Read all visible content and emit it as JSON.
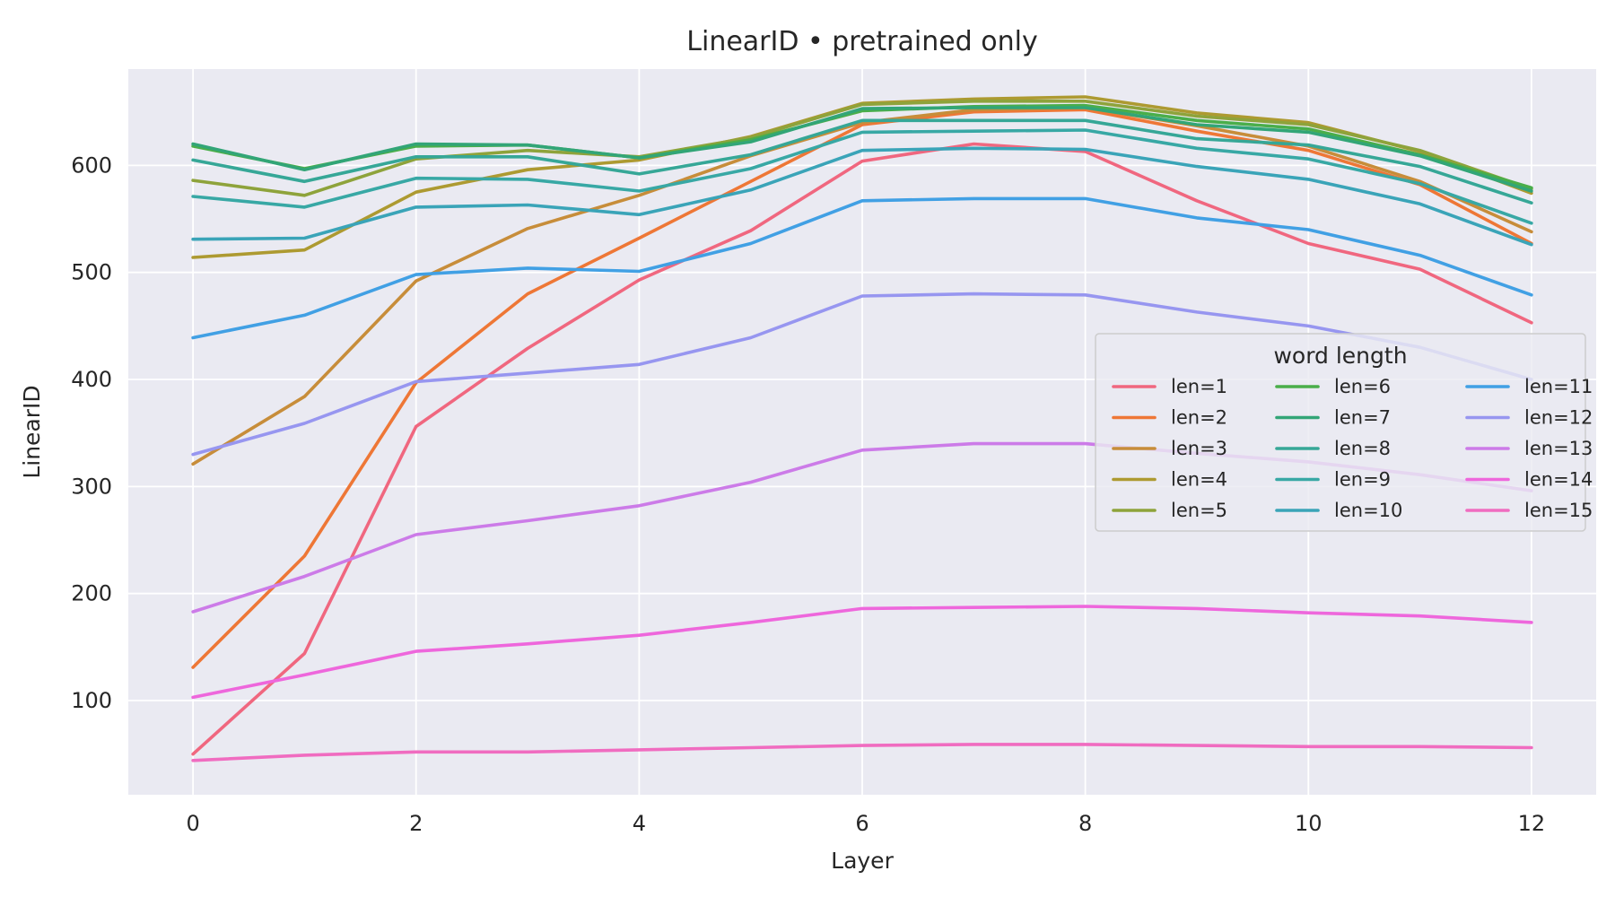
{
  "chart_data": {
    "type": "line",
    "title": "LinearID • pretrained only",
    "xlabel": "Layer",
    "ylabel": "LinearID",
    "xlim": [
      -0.58,
      12.58
    ],
    "ylim": [
      12,
      690
    ],
    "xticks": [
      0,
      2,
      4,
      6,
      8,
      10,
      12
    ],
    "yticks": [
      100,
      200,
      300,
      400,
      500,
      600
    ],
    "grid": true,
    "legend": {
      "title": "word length",
      "placement": "center-right",
      "columns": 3
    },
    "x": [
      0,
      1,
      2,
      3,
      4,
      5,
      6,
      7,
      8,
      9,
      10,
      11,
      12
    ],
    "series": [
      {
        "name": "len=1",
        "color": "#f0677f",
        "values": [
          50,
          144,
          356,
          429,
          493,
          539,
          604,
          620,
          613,
          567,
          527,
          503,
          453
        ]
      },
      {
        "name": "len=2",
        "color": "#ee7736",
        "values": [
          131,
          235,
          397,
          480,
          532,
          585,
          638,
          650,
          652,
          632,
          614,
          582,
          527
        ]
      },
      {
        "name": "len=3",
        "color": "#c78d3a",
        "values": [
          321,
          384,
          492,
          541,
          572,
          609,
          640,
          652,
          654,
          637,
          618,
          585,
          538
        ]
      },
      {
        "name": "len=4",
        "color": "#ad9a31",
        "values": [
          514,
          521,
          575,
          596,
          605,
          627,
          658,
          662,
          664,
          649,
          640,
          613,
          574
        ]
      },
      {
        "name": "len=5",
        "color": "#8ea33b",
        "values": [
          586,
          572,
          606,
          614,
          608,
          626,
          657,
          660,
          660,
          646,
          638,
          614,
          578
        ]
      },
      {
        "name": "len=6",
        "color": "#4aae4a",
        "values": [
          618,
          597,
          618,
          619,
          607,
          624,
          651,
          655,
          656,
          642,
          634,
          610,
          579
        ]
      },
      {
        "name": "len=7",
        "color": "#32a577",
        "values": [
          620,
          596,
          620,
          619,
          607,
          622,
          653,
          654,
          654,
          638,
          631,
          609,
          576
        ]
      },
      {
        "name": "len=8",
        "color": "#36a797",
        "values": [
          605,
          585,
          608,
          608,
          592,
          610,
          642,
          642,
          642,
          625,
          619,
          599,
          565
        ]
      },
      {
        "name": "len=9",
        "color": "#38a8a5",
        "values": [
          571,
          561,
          588,
          587,
          576,
          597,
          631,
          632,
          633,
          616,
          606,
          583,
          546
        ]
      },
      {
        "name": "len=10",
        "color": "#3aa4b8",
        "values": [
          531,
          532,
          561,
          563,
          554,
          577,
          614,
          616,
          615,
          599,
          587,
          564,
          526
        ]
      },
      {
        "name": "len=11",
        "color": "#41a0e4",
        "values": [
          439,
          460,
          498,
          504,
          501,
          527,
          567,
          569,
          569,
          551,
          540,
          516,
          479
        ]
      },
      {
        "name": "len=12",
        "color": "#9796f0",
        "values": [
          330,
          359,
          398,
          406,
          414,
          439,
          478,
          480,
          479,
          463,
          450,
          430,
          400
        ]
      },
      {
        "name": "len=13",
        "color": "#cc7be8",
        "values": [
          183,
          216,
          255,
          268,
          282,
          304,
          334,
          340,
          340,
          331,
          323,
          311,
          296
        ]
      },
      {
        "name": "len=14",
        "color": "#ee67dc",
        "values": [
          103,
          124,
          146,
          153,
          161,
          173,
          186,
          187,
          188,
          186,
          182,
          179,
          173
        ]
      },
      {
        "name": "len=15",
        "color": "#f06cc0",
        "values": [
          44,
          49,
          52,
          52,
          54,
          56,
          58,
          59,
          59,
          58,
          57,
          57,
          56
        ]
      }
    ]
  }
}
